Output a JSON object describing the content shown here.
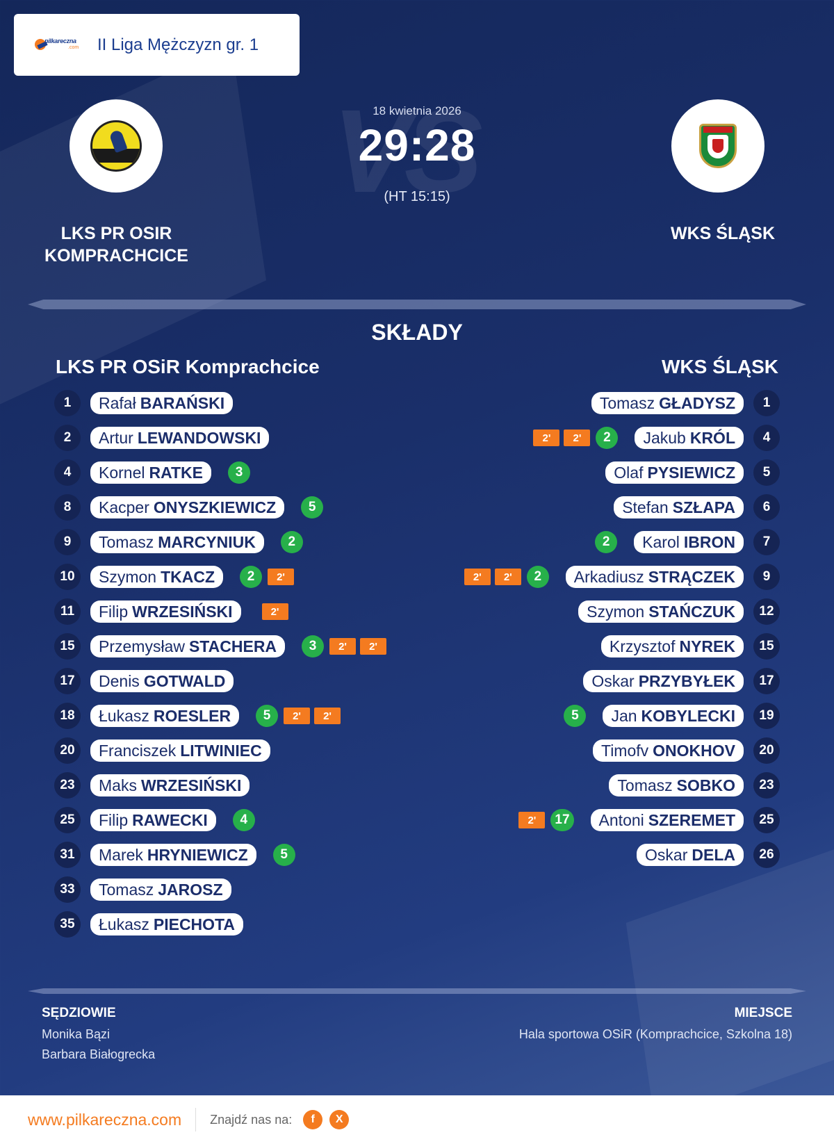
{
  "header": {
    "brand_name": "pilkareczna",
    "brand_domain": ".com",
    "league": "II Liga Mężczyzn gr. 1"
  },
  "match": {
    "date": "18 kwietnia 2026",
    "score": "29:28",
    "halftime": "(HT 15:15)",
    "vs": "VS"
  },
  "home": {
    "name": "LKS PR OSIR KOMPRACHCICE",
    "squad_title": "LKS PR OSiR Komprachcice",
    "players": [
      {
        "number": "1",
        "first": "Rafał",
        "last": "BARAŃSKI",
        "goals": "",
        "penalties": 0
      },
      {
        "number": "2",
        "first": "Artur",
        "last": "LEWANDOWSKI",
        "goals": "",
        "penalties": 0
      },
      {
        "number": "4",
        "first": "Kornel",
        "last": "RATKE",
        "goals": "3",
        "penalties": 0
      },
      {
        "number": "8",
        "first": "Kacper",
        "last": "ONYSZKIEWICZ",
        "goals": "5",
        "penalties": 0
      },
      {
        "number": "9",
        "first": "Tomasz",
        "last": "MARCYNIUK",
        "goals": "2",
        "penalties": 0
      },
      {
        "number": "10",
        "first": "Szymon",
        "last": "TKACZ",
        "goals": "2",
        "penalties": 1
      },
      {
        "number": "11",
        "first": "Filip",
        "last": "WRZESIŃSKI",
        "goals": "",
        "penalties": 1
      },
      {
        "number": "15",
        "first": "Przemysław",
        "last": "STACHERA",
        "goals": "3",
        "penalties": 2
      },
      {
        "number": "17",
        "first": "Denis",
        "last": "GOTWALD",
        "goals": "",
        "penalties": 0
      },
      {
        "number": "18",
        "first": "Łukasz",
        "last": "ROESLER",
        "goals": "5",
        "penalties": 2
      },
      {
        "number": "20",
        "first": "Franciszek",
        "last": "LITWINIEC",
        "goals": "",
        "penalties": 0
      },
      {
        "number": "23",
        "first": "Maks",
        "last": "WRZESIŃSKI",
        "goals": "",
        "penalties": 0
      },
      {
        "number": "25",
        "first": "Filip",
        "last": "RAWECKI",
        "goals": "4",
        "penalties": 0
      },
      {
        "number": "31",
        "first": "Marek",
        "last": "HRYNIEWICZ",
        "goals": "5",
        "penalties": 0
      },
      {
        "number": "33",
        "first": "Tomasz",
        "last": "JAROSZ",
        "goals": "",
        "penalties": 0
      },
      {
        "number": "35",
        "first": "Łukasz",
        "last": "PIECHOTA",
        "goals": "",
        "penalties": 0
      }
    ]
  },
  "away": {
    "name": "WKS ŚLĄSK",
    "squad_title": "WKS ŚLĄSK",
    "players": [
      {
        "number": "1",
        "first": "Tomasz",
        "last": "GŁADYSZ",
        "goals": "",
        "penalties": 0
      },
      {
        "number": "4",
        "first": "Jakub",
        "last": "KRÓL",
        "goals": "2",
        "penalties": 2
      },
      {
        "number": "5",
        "first": "Olaf",
        "last": "PYSIEWICZ",
        "goals": "",
        "penalties": 0
      },
      {
        "number": "6",
        "first": "Stefan",
        "last": "SZŁAPA",
        "goals": "",
        "penalties": 0
      },
      {
        "number": "7",
        "first": "Karol",
        "last": "IBRON",
        "goals": "2",
        "penalties": 0
      },
      {
        "number": "9",
        "first": "Arkadiusz",
        "last": "STRĄCZEK",
        "goals": "2",
        "penalties": 2
      },
      {
        "number": "12",
        "first": "Szymon",
        "last": "STAŃCZUK",
        "goals": "",
        "penalties": 0
      },
      {
        "number": "15",
        "first": "Krzysztof",
        "last": "NYREK",
        "goals": "",
        "penalties": 0
      },
      {
        "number": "17",
        "first": "Oskar",
        "last": "PRZYBYŁEK",
        "goals": "",
        "penalties": 0
      },
      {
        "number": "19",
        "first": "Jan",
        "last": "KOBYLECKI",
        "goals": "5",
        "penalties": 0
      },
      {
        "number": "20",
        "first": "Timofv",
        "last": "ONOKHOV",
        "goals": "",
        "penalties": 0
      },
      {
        "number": "23",
        "first": "Tomasz",
        "last": "SOBKO",
        "goals": "",
        "penalties": 0
      },
      {
        "number": "25",
        "first": "Antoni",
        "last": "SZEREMET",
        "goals": "17",
        "penalties": 1
      },
      {
        "number": "26",
        "first": "Oskar",
        "last": "DELA",
        "goals": "",
        "penalties": 0
      }
    ]
  },
  "penalty_label": "2'",
  "section_title": "SKŁADY",
  "officials": {
    "title": "SĘDZIOWIE",
    "names": [
      "Monika Bązi",
      "Barbara Białogrecka"
    ]
  },
  "venue": {
    "title": "MIEJSCE",
    "text": "Hala sportowa OSiR (Komprachcice, Szkolna 18)"
  },
  "footer": {
    "site": "www.pilkareczna.com",
    "find_us": "Znajdź nas na:",
    "social": [
      {
        "icon": "facebook-icon",
        "glyph": "f"
      },
      {
        "icon": "x-icon",
        "glyph": "X"
      }
    ]
  },
  "colors": {
    "background": "#1a2f6a",
    "accent": "#f47b20",
    "goal": "#27b04a",
    "pill_text": "#1b2d6a"
  }
}
